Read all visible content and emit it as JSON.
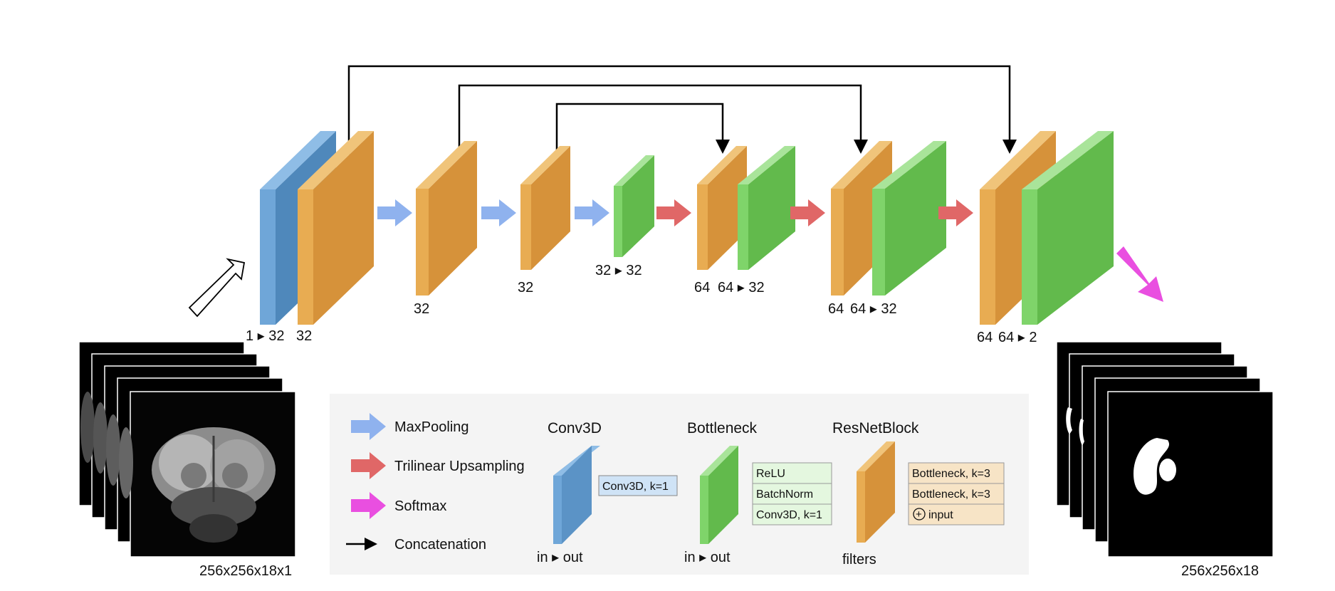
{
  "colors": {
    "conv_blue": "#6fa6d8",
    "resnet_orange": "#e8ac52",
    "bottleneck_green": "#7fd46a",
    "maxpool_arrow": "#8fb2ee",
    "upsample_arrow": "#e06767",
    "softmax_arrow": "#e94fe0",
    "legend_bg": "#f4f4f4"
  },
  "network_labels": {
    "enc1_conv": "1 ▸ 32",
    "enc1_res": "32",
    "enc2_res": "32",
    "enc3_res": "32",
    "bottom_bn": "32 ▸ 32",
    "dec1_res": "64",
    "dec1_bn": "64 ▸ 32",
    "dec2_res": "64",
    "dec2_bn": "64 ▸ 32",
    "dec3_res": "64",
    "dec3_bn": "64 ▸ 2"
  },
  "input_dims": "256x256x18x1",
  "output_dims": "256x256x18",
  "legend": {
    "items": [
      {
        "icon": "maxpool-arrow-icon",
        "label": "MaxPooling"
      },
      {
        "icon": "upsample-arrow-icon",
        "label": "Trilinear Upsampling"
      },
      {
        "icon": "softmax-arrow-icon",
        "label": "Softmax"
      },
      {
        "icon": "concatenation-arrow-icon",
        "label": "Concatenation"
      }
    ],
    "conv3d": {
      "title": "Conv3D",
      "box": "Conv3D, k=1",
      "caption": "in ▸ out"
    },
    "bottleneck": {
      "title": "Bottleneck",
      "layers": [
        "ReLU",
        "BatchNorm",
        "Conv3D, k=1"
      ],
      "caption": "in ▸ out"
    },
    "resnet": {
      "title": "ResNetBlock",
      "layers": [
        "Bottleneck, k=3",
        "Bottleneck, k=3",
        "input"
      ],
      "add_symbol": "+",
      "caption": "filters"
    }
  }
}
